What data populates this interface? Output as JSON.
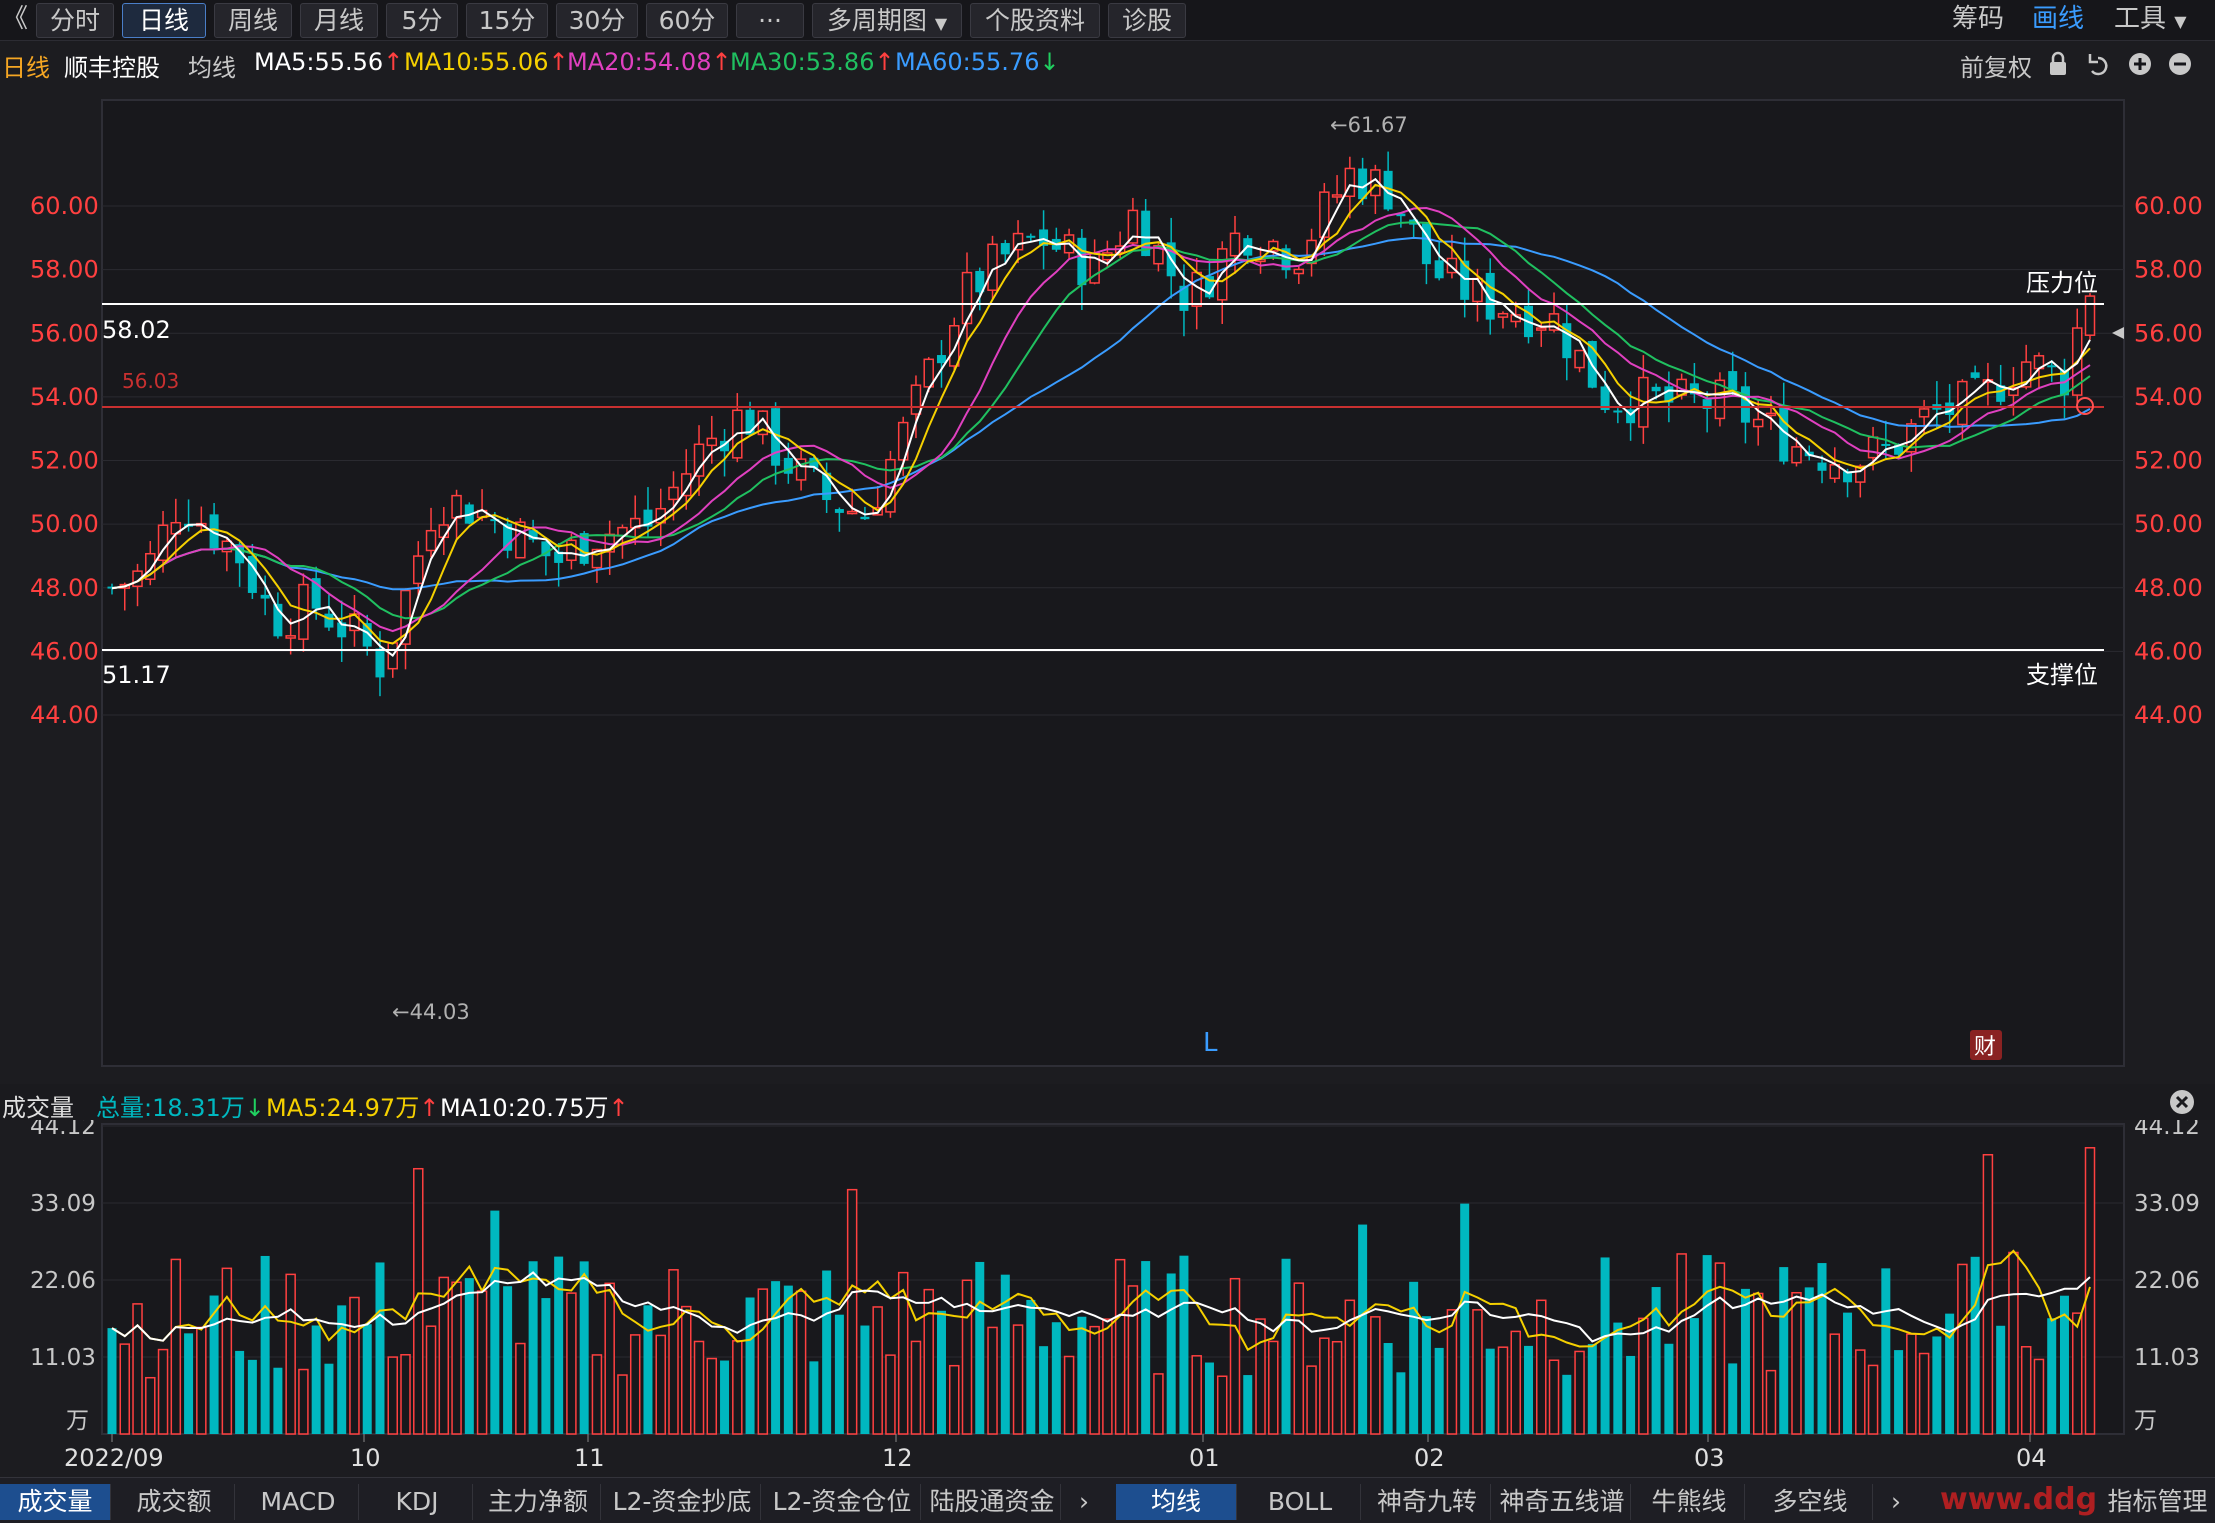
{
  "toolbar": {
    "back_glyph": "《",
    "periods": [
      "分时",
      "日线",
      "周线",
      "月线",
      "5分",
      "15分",
      "30分",
      "60分"
    ],
    "active_period": "日线",
    "more_label": "···",
    "multi_period_label": "多周期图",
    "stock_info_label": "个股资料",
    "diagnose_label": "诊股",
    "chips_label": "筹码",
    "draw_label": "画线",
    "tools_label": "工具"
  },
  "header": {
    "period": "日线",
    "stock_name": "顺丰控股",
    "ma_label": "均线",
    "ma5": "MA5:55.56",
    "ma10": "MA10:55.06",
    "ma20": "MA20:54.08",
    "ma30": "MA30:53.86",
    "ma60": "MA60:55.76",
    "adjust_label": "前复权",
    "colors": {
      "ma5": "#ffffff",
      "ma10": "#f5d000",
      "ma20": "#e040c0",
      "ma30": "#20c060",
      "ma60": "#3a9cff",
      "up": "#ff4040",
      "down": "#00b8c0"
    }
  },
  "price_chart": {
    "y_ticks": [
      "60.00",
      "58.00",
      "56.00",
      "54.00",
      "52.00",
      "50.00",
      "48.00",
      "46.00",
      "44.00"
    ],
    "resistance_label": "压力位",
    "resistance_value": "58.02",
    "support_label": "支撑位",
    "support_value": "51.17",
    "current_line_value": "56.03",
    "high_marker": "←61.67",
    "low_marker": "←44.03",
    "marker_L": "L",
    "marker_cai": "财"
  },
  "volume_header": {
    "title": "成交量",
    "total": "总量:18.31万",
    "ma5": "MA5:24.97万",
    "ma10": "MA10:20.75万"
  },
  "volume_chart": {
    "y_ticks": [
      "44.12",
      "33.09",
      "22.06",
      "11.03"
    ],
    "unit": "万",
    "x_labels": [
      "2022/09",
      "10",
      "11",
      "12",
      "01",
      "02",
      "03",
      "04"
    ]
  },
  "bottom_tabs_left": [
    "成交量",
    "成交额",
    "MACD",
    "KDJ",
    "主力净额",
    "L2-资金抄底",
    "L2-资金仓位",
    "陆股通资金"
  ],
  "bottom_tabs_right": [
    "均线",
    "BOLL",
    "神奇九转",
    "神奇五线谱",
    "牛熊线",
    "多空线"
  ],
  "bottom_right_label": "指标管理",
  "watermark": "www.ddg",
  "chart_data": {
    "type": "candlestick",
    "title": "顺丰控股 日线",
    "ylim": [
      43.5,
      62.2
    ],
    "x_labels": [
      "2022/09",
      "10",
      "11",
      "12",
      "01",
      "02",
      "03",
      "04"
    ],
    "resistance": 58.02,
    "support": 51.17,
    "reference": 56.03,
    "high": 61.67,
    "low": 44.03,
    "ma": {
      "ma5": 55.56,
      "ma10": 55.06,
      "ma20": 54.08,
      "ma30": 53.86,
      "ma60": 55.76
    },
    "volume_ylim": [
      0,
      44.12
    ],
    "volume_total": 18.31
  }
}
